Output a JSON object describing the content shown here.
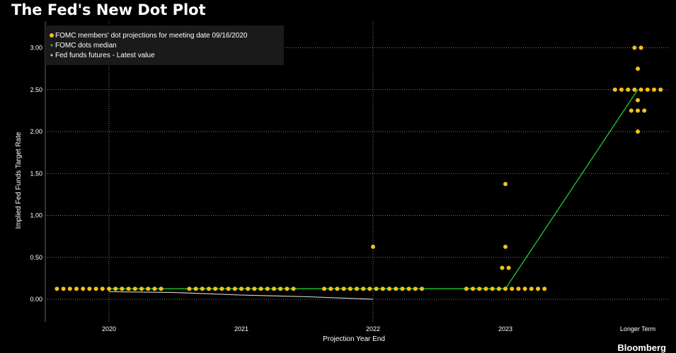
{
  "page": {
    "title": "The Fed's New Dot Plot",
    "brand": "Bloomberg"
  },
  "colors": {
    "background": "#000000",
    "dots": "#f2c01e",
    "median": "#22cc22",
    "futures": "#cccccc",
    "grid": "#9a9a9a"
  },
  "chart_data": {
    "type": "scatter",
    "title": "The Fed's New Dot Plot",
    "xlabel": "Projection Year End",
    "ylabel": "Implied Fed Funds Target Rate",
    "categories": [
      "2020",
      "2021",
      "2022",
      "2023",
      "Longer Term"
    ],
    "yticks": [
      "0.00",
      "0.50",
      "1.00",
      "1.50",
      "2.00",
      "2.50",
      "3.00"
    ],
    "ylim": [
      -0.25,
      3.1
    ],
    "grid": true,
    "legend_position": "top-left",
    "legend": [
      "FOMC members' dot projections for meeting date 09/16/2020",
      "FOMC dots median",
      "Fed funds futures - Latest value"
    ],
    "dots": [
      {
        "category": "2020",
        "counts": [
          {
            "value": 0.125,
            "count": 17
          }
        ]
      },
      {
        "category": "2021",
        "counts": [
          {
            "value": 0.125,
            "count": 17
          }
        ]
      },
      {
        "category": "2022",
        "counts": [
          {
            "value": 0.125,
            "count": 16
          },
          {
            "value": 0.625,
            "count": 1
          }
        ]
      },
      {
        "category": "2023",
        "counts": [
          {
            "value": 0.125,
            "count": 13
          },
          {
            "value": 0.375,
            "count": 2
          },
          {
            "value": 0.625,
            "count": 1
          },
          {
            "value": 1.375,
            "count": 1
          }
        ]
      },
      {
        "category": "Longer Term",
        "counts": [
          {
            "value": 2.0,
            "count": 1
          },
          {
            "value": 2.25,
            "count": 3
          },
          {
            "value": 2.375,
            "count": 1
          },
          {
            "value": 2.5,
            "count": 8
          },
          {
            "value": 2.75,
            "count": 1
          },
          {
            "value": 3.0,
            "count": 2
          }
        ]
      }
    ],
    "series": [
      {
        "name": "FOMC dots median",
        "x": [
          "2020",
          "2021",
          "2022",
          "2023",
          "Longer Term"
        ],
        "values": [
          0.125,
          0.125,
          0.125,
          0.125,
          2.5
        ]
      },
      {
        "name": "Fed funds futures - Latest value",
        "x": [
          "2020",
          "2020.5",
          "2021",
          "2021.5",
          "2022"
        ],
        "values": [
          0.09,
          0.08,
          0.05,
          0.03,
          0.0
        ]
      }
    ]
  }
}
